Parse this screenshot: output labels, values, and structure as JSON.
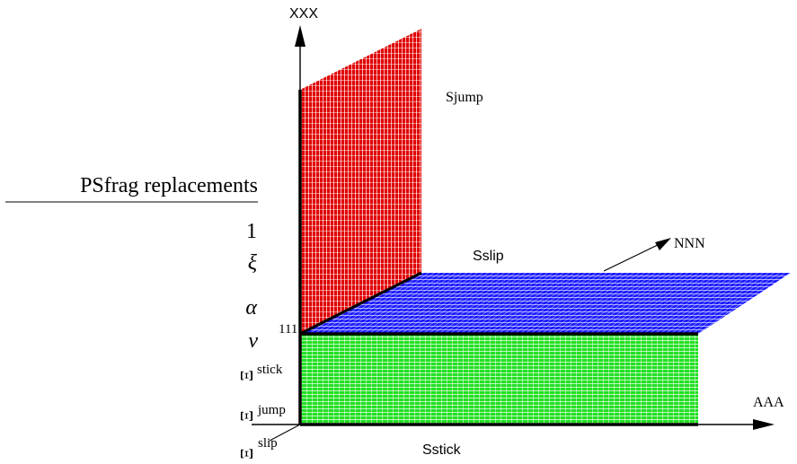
{
  "labels": {
    "vertical_axis": "XXX",
    "horizontal_axis": "AAA",
    "normal_vector": "NNN",
    "jump_region": "Sjump",
    "slip_region": "Sslip",
    "stick_region": "Sstick",
    "corner_marker": "111"
  },
  "psfrag": {
    "title": "PSfrag replacements",
    "items": [
      "1",
      "ξ",
      "α",
      "ν"
    ],
    "xi_items": [
      {
        "base": "Ξ",
        "sup": "stick"
      },
      {
        "base": "Ξ",
        "sub": "jump"
      },
      {
        "base": "Ξ",
        "sup": "slip"
      }
    ]
  },
  "colors": {
    "jump_region": "#e00000",
    "slip_region": "#1a1aff",
    "stick_region": "#22e022",
    "axes": "#000000",
    "hatch": "#ffffff"
  }
}
